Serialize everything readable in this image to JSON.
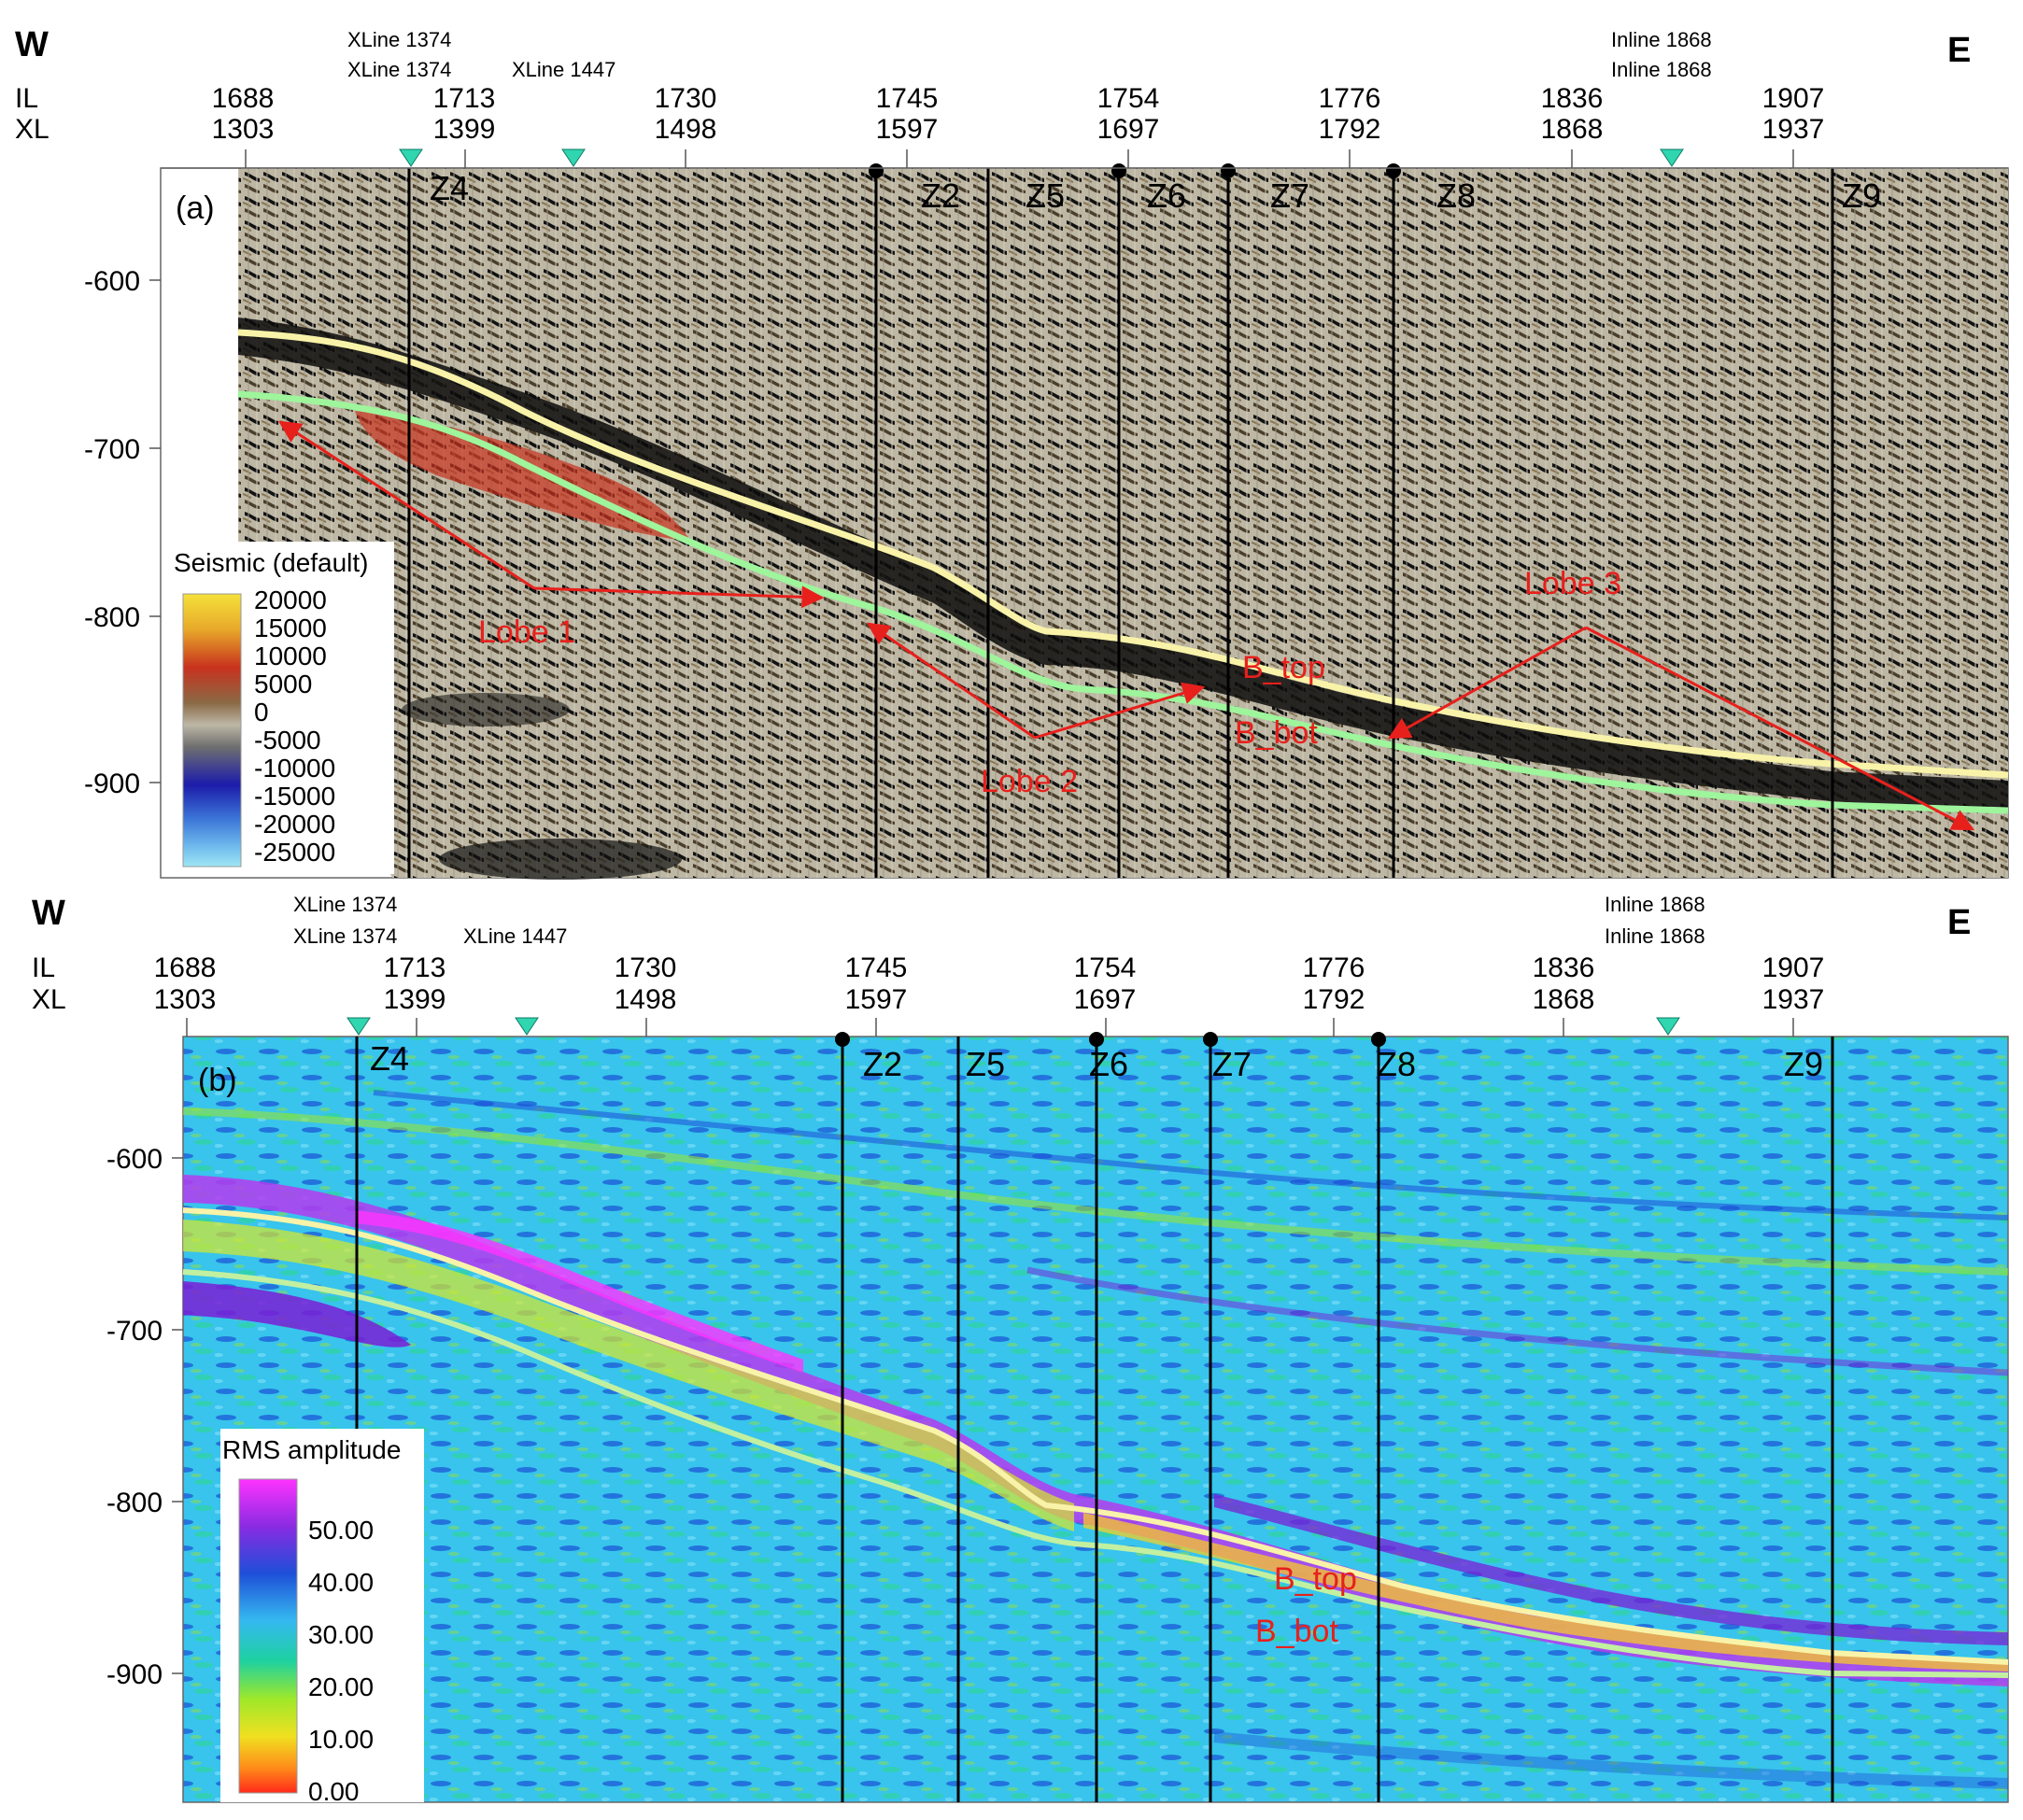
{
  "figure": {
    "panels": [
      {
        "id": "a",
        "panel_label": "(a)",
        "side_left": "W",
        "side_right": "E",
        "row_labels": [
          "IL",
          "XL"
        ],
        "axis_ticks": [
          {
            "il": "1688",
            "xl": "1303"
          },
          {
            "il": "1713",
            "xl": "1399"
          },
          {
            "il": "1730",
            "xl": "1498"
          },
          {
            "il": "1745",
            "xl": "1597"
          },
          {
            "il": "1754",
            "xl": "1697"
          },
          {
            "il": "1776",
            "xl": "1792"
          },
          {
            "il": "1836",
            "xl": "1868"
          },
          {
            "il": "1907",
            "xl": "1937"
          }
        ],
        "intersection_labels": [
          "XLine 1374",
          "XLine 1374",
          "XLine 1447",
          "Inline 1868",
          "Inline 1868"
        ],
        "depth_ticks": [
          "-600",
          "-700",
          "-800",
          "-900"
        ],
        "wells": [
          "Z4",
          "Z2",
          "Z5",
          "Z6",
          "Z7",
          "Z8",
          "Z9"
        ],
        "horizons": [
          "B_top",
          "B_bot"
        ],
        "annotations": [
          "Lobe 1",
          "Lobe 2",
          "Lobe 3"
        ],
        "legend": {
          "title": "Seismic (default)",
          "values": [
            "20000",
            "15000",
            "10000",
            "5000",
            "0",
            "-5000",
            "-10000",
            "-15000",
            "-20000",
            "-25000"
          ],
          "colors": [
            "#f5e13a",
            "#e8a92a",
            "#c8321e",
            "#8a6a45",
            "#bdb7a6",
            "#6f6f6f",
            "#1c1caa",
            "#3a72d6",
            "#6bb6ec",
            "#9fe6f4"
          ]
        }
      },
      {
        "id": "b",
        "panel_label": "(b)",
        "side_left": "W",
        "side_right": "E",
        "row_labels": [
          "IL",
          "XL"
        ],
        "axis_ticks": [
          {
            "il": "1688",
            "xl": "1303"
          },
          {
            "il": "1713",
            "xl": "1399"
          },
          {
            "il": "1730",
            "xl": "1498"
          },
          {
            "il": "1745",
            "xl": "1597"
          },
          {
            "il": "1754",
            "xl": "1697"
          },
          {
            "il": "1776",
            "xl": "1792"
          },
          {
            "il": "1836",
            "xl": "1868"
          },
          {
            "il": "1907",
            "xl": "1937"
          }
        ],
        "intersection_labels": [
          "XLine 1374",
          "XLine 1374",
          "XLine 1447",
          "Inline 1868",
          "Inline 1868"
        ],
        "depth_ticks": [
          "-600",
          "-700",
          "-800",
          "-900"
        ],
        "wells": [
          "Z4",
          "Z2",
          "Z5",
          "Z6",
          "Z7",
          "Z8",
          "Z9"
        ],
        "horizons": [
          "B_top",
          "B_bot"
        ],
        "legend": {
          "title": "RMS amplitude",
          "values": [
            "50.00",
            "40.00",
            "30.00",
            "20.00",
            "10.00",
            "0.00"
          ],
          "colors": [
            "#ff33ff",
            "#8a2be2",
            "#1e4fd8",
            "#35b8f0",
            "#1ed1a0",
            "#9ee82a",
            "#f0e020",
            "#ff8c1a",
            "#ff2a1a"
          ]
        }
      }
    ]
  }
}
